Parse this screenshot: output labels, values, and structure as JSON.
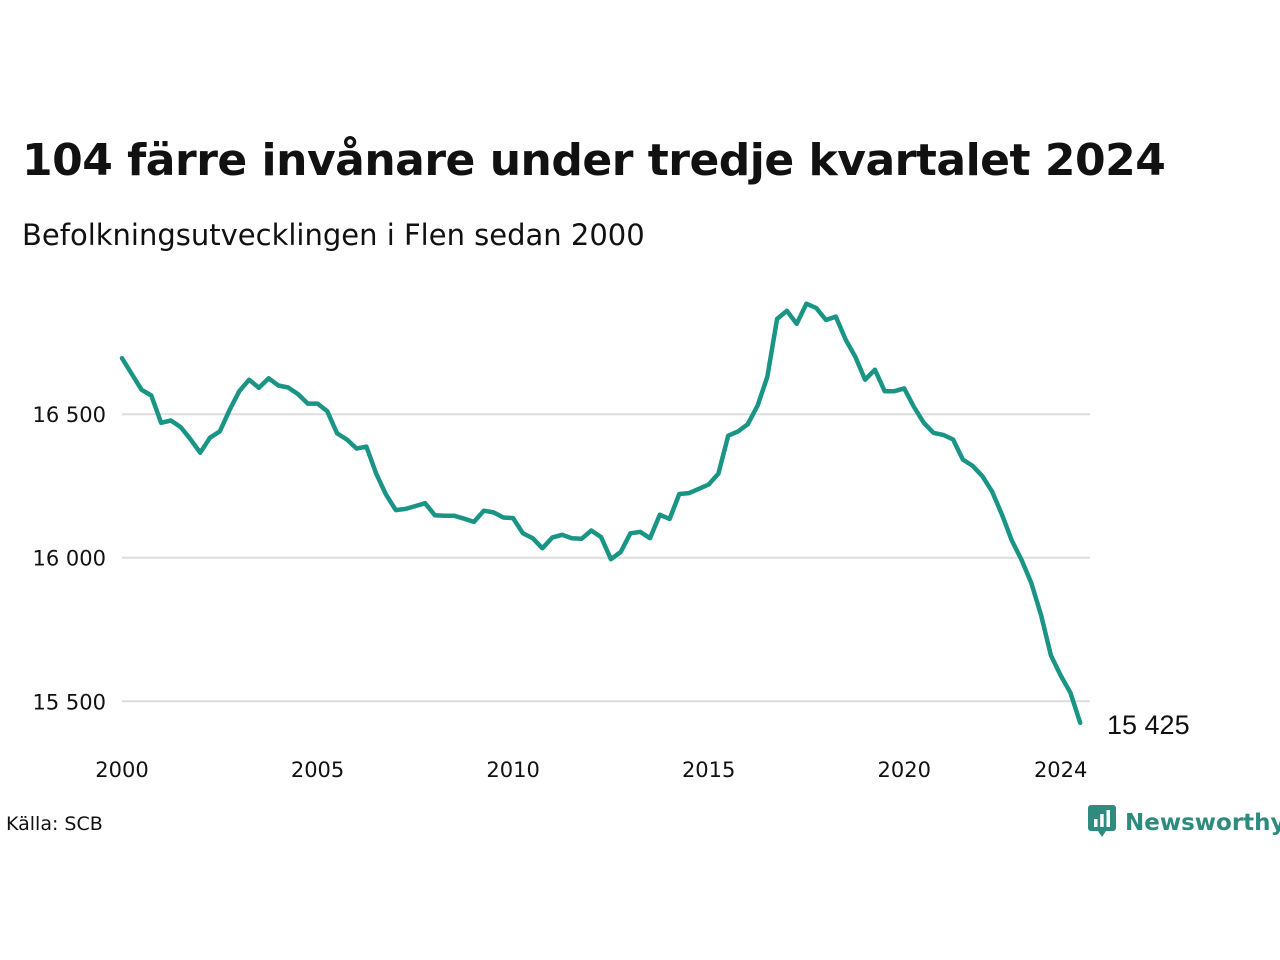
{
  "title": "104 färre invånare under tredje kvartalet 2024",
  "subtitle": "Befolkningsutvecklingen i Flen sedan 2000",
  "source": "Källa: SCB",
  "brand": {
    "name": "Newsworthy",
    "logo_icon": "newsworthy-bar-chart-icon",
    "color": "#2e8b7e"
  },
  "colors": {
    "line": "#1a9485",
    "grid": "#dddddd",
    "text": "#111111"
  },
  "chart_data": {
    "type": "line",
    "title": "104 färre invånare under tredje kvartalet 2024",
    "subtitle": "Befolkningsutvecklingen i Flen sedan 2000",
    "xlabel": "",
    "ylabel": "",
    "xlim": [
      2000,
      2024.75
    ],
    "ylim": [
      15400,
      16950
    ],
    "grid": "horizontal",
    "y_ticks": [
      {
        "value": 15500,
        "label": "15 500"
      },
      {
        "value": 16000,
        "label": "16 000"
      },
      {
        "value": 16500,
        "label": "16 500"
      }
    ],
    "x_ticks": [
      {
        "value": 2000,
        "label": "2000"
      },
      {
        "value": 2005,
        "label": "2005"
      },
      {
        "value": 2010,
        "label": "2010"
      },
      {
        "value": 2015,
        "label": "2015"
      },
      {
        "value": 2020,
        "label": "2020"
      },
      {
        "value": 2024,
        "label": "2024"
      }
    ],
    "end_label": "15 425",
    "series": [
      {
        "x": [
          2000.0,
          2000.25,
          2000.5,
          2000.75,
          2001.0,
          2001.25,
          2001.5,
          2001.75,
          2002.0,
          2002.25,
          2002.5,
          2002.75,
          2003.0,
          2003.25,
          2003.5,
          2003.75,
          2004.0,
          2004.25,
          2004.5,
          2004.75,
          2005.0,
          2005.25,
          2005.5,
          2005.75,
          2006.0,
          2006.25,
          2006.5,
          2006.75,
          2007.0,
          2007.25,
          2007.5,
          2007.75,
          2008.0,
          2008.25,
          2008.5,
          2008.75,
          2009.0,
          2009.25,
          2009.5,
          2009.75,
          2010.0,
          2010.25,
          2010.5,
          2010.75,
          2011.0,
          2011.25,
          2011.5,
          2011.75,
          2012.0,
          2012.25,
          2012.5,
          2012.75,
          2013.0,
          2013.25,
          2013.5,
          2013.75,
          2014.0,
          2014.25,
          2014.5,
          2014.75,
          2015.0,
          2015.25,
          2015.5,
          2015.75,
          2016.0,
          2016.25,
          2016.5,
          2016.75,
          2017.0,
          2017.25,
          2017.5,
          2017.75,
          2018.0,
          2018.25,
          2018.5,
          2018.75,
          2019.0,
          2019.25,
          2019.5,
          2019.75,
          2020.0,
          2020.25,
          2020.5,
          2020.75,
          2021.0,
          2021.25,
          2021.5,
          2021.75,
          2022.0,
          2022.25,
          2022.5,
          2022.75,
          2023.0,
          2023.25,
          2023.5,
          2023.75,
          2024.0,
          2024.25,
          2024.5
        ],
        "values": [
          16695,
          16640,
          16585,
          16565,
          16470,
          16478,
          16455,
          16413,
          16366,
          16418,
          16440,
          16515,
          16580,
          16620,
          16592,
          16625,
          16600,
          16593,
          16570,
          16537,
          16537,
          16510,
          16433,
          16412,
          16380,
          16387,
          16293,
          16220,
          16166,
          16170,
          16180,
          16190,
          16148,
          16146,
          16146,
          16136,
          16125,
          16164,
          16158,
          16140,
          16138,
          16085,
          16068,
          16033,
          16070,
          16080,
          16068,
          16066,
          16095,
          16072,
          15995,
          16020,
          16085,
          16090,
          16068,
          16150,
          16135,
          16222,
          16225,
          16240,
          16255,
          16293,
          16425,
          16440,
          16465,
          16530,
          16630,
          16832,
          16860,
          16815,
          16885,
          16870,
          16828,
          16840,
          16760,
          16700,
          16620,
          16655,
          16580,
          16580,
          16590,
          16525,
          16470,
          16435,
          16428,
          16412,
          16342,
          16320,
          16284,
          16230,
          16150,
          16060,
          15992,
          15912,
          15800,
          15660,
          15590,
          15530,
          15425
        ]
      }
    ]
  }
}
